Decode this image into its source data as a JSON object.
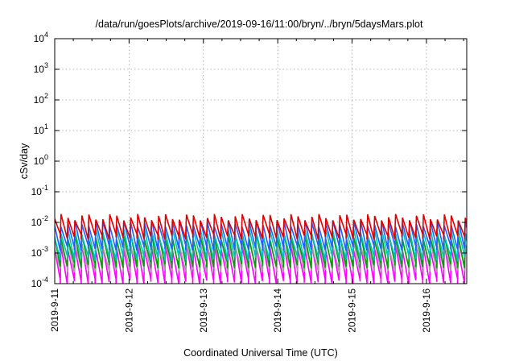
{
  "chart_data": {
    "type": "line",
    "title": "/data/run/goesPlots/archive/2019-09-16/11:00/bryn/../bryn/5daysMars.plot",
    "xlabel": "Coordinated Universal Time (UTC)",
    "ylabel": "cSv/day",
    "yscale": "log",
    "ylim": [
      0.0001,
      10000
    ],
    "xlim": [
      "2019-09-11",
      "2019-09-16 13:00"
    ],
    "grid": true,
    "legend": "none",
    "xticks": [
      "2019-9-11",
      "2019-9-12",
      "2019-9-13",
      "2019-9-14",
      "2019-9-15",
      "2019-9-16"
    ],
    "yticks": [
      {
        "base": "10",
        "exp": "-4",
        "value": 0.0001
      },
      {
        "base": "10",
        "exp": "-3",
        "value": 0.001
      },
      {
        "base": "10",
        "exp": "-2",
        "value": 0.01
      },
      {
        "base": "10",
        "exp": "-1",
        "value": 0.1
      },
      {
        "base": "10",
        "exp": "0",
        "value": 1
      },
      {
        "base": "10",
        "exp": "1",
        "value": 10
      },
      {
        "base": "10",
        "exp": "2",
        "value": 100
      },
      {
        "base": "10",
        "exp": "3",
        "value": 1000
      },
      {
        "base": "10",
        "exp": "4",
        "value": 10000
      }
    ],
    "sawtooth_period_hours": 2.25,
    "series": [
      {
        "color": "#e00000",
        "peak": 0.015,
        "trough": 0.0035
      },
      {
        "color": "#ff00ff",
        "peak": 0.0016,
        "trough": 0.00012
      },
      {
        "color": "#00a000",
        "peak": 0.0035,
        "trough": 0.0004
      },
      {
        "color": "#2060ff",
        "peak": 0.0095,
        "trough": 0.0015
      },
      {
        "color": "#00c0c0",
        "peak": 0.005,
        "trough": 0.0007
      },
      {
        "color": "#a0a0a0",
        "peak": 0.0022,
        "trough": 0.0003
      }
    ]
  }
}
